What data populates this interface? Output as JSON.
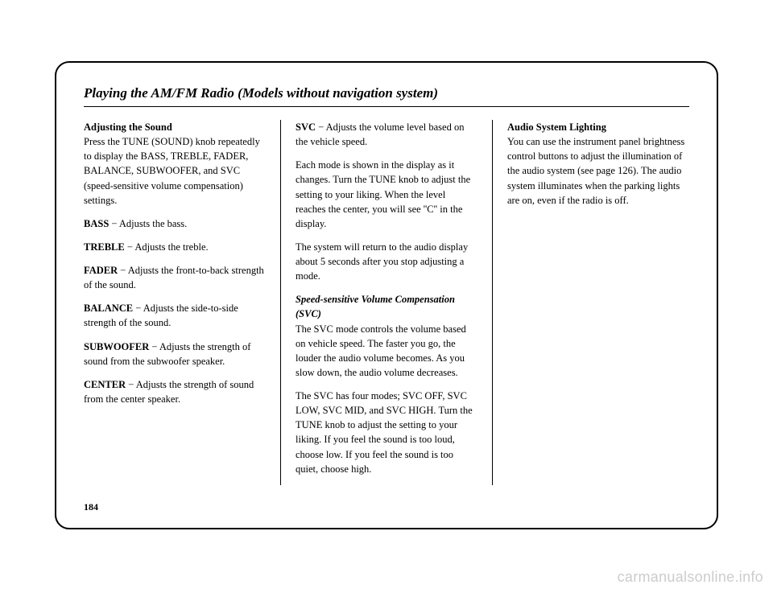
{
  "title": "Playing the AM/FM Radio (Models without navigation system)",
  "col1": {
    "h1": "Adjusting the Sound",
    "p1a": "Press the TUNE (SOUND) knob repeatedly to display the BASS, TREBLE, FADER, BALANCE, SUBWOOFER, and SVC (speed-sensitive volume compensation) settings.",
    "bass_l": "BASS",
    "bass_t": " − Adjusts the bass.",
    "treble_l": "TREBLE",
    "treble_t": " − Adjusts the treble.",
    "fader_l": "FADER",
    "fader_t": " − Adjusts the front-to-back strength of the sound.",
    "bal_l": "BALANCE",
    "bal_t": " − Adjusts the side-to-side strength of the sound.",
    "sub_l": "SUBWOOFER",
    "sub_t": " − Adjusts the strength of sound from the subwoofer speaker.",
    "ctr_l": "CENTER",
    "ctr_t": " − Adjusts the strength of sound from the center speaker."
  },
  "col2": {
    "svc_l": "SVC",
    "svc_t": " − Adjusts the volume level based on the vehicle speed.",
    "p2": "Each mode is shown in the display as it changes. Turn the TUNE knob to adjust the setting to your liking. When the level reaches the center, you will see ''C'' in the display.",
    "p3": "The system will return to the audio display about 5 seconds after you stop adjusting a mode.",
    "h2": "Speed-sensitive Volume Compensation (SVC)",
    "p4": "The SVC mode controls the volume based on vehicle speed. The faster you go, the louder the audio volume becomes. As you slow down, the audio volume decreases.",
    "p5": "The SVC has four modes; SVC OFF, SVC LOW, SVC MID, and SVC HIGH. Turn the TUNE knob to adjust the setting to your liking. If you feel the sound is too loud, choose low. If you feel the sound is too quiet, choose high."
  },
  "col3": {
    "h3": "Audio System Lighting",
    "p6": "You can use the instrument panel brightness control buttons to adjust the illumination of the audio system (see page 126). The audio system illuminates when the parking lights are on, even if the radio is off."
  },
  "pagenum": "184",
  "watermark": "carmanualsonline.info"
}
